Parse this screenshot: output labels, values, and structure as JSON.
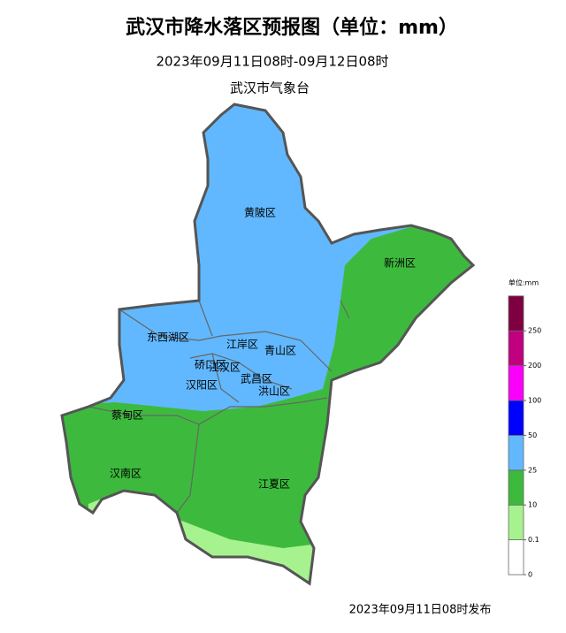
{
  "header": {
    "title": "武汉市降水落区预报图（单位：mm）",
    "subtitle": "2023年09月11日08时-09月12日08时",
    "issuer": "武汉市气象台"
  },
  "districts": [
    "黄陂区",
    "新洲区",
    "东西湖区",
    "江岸区",
    "青山区",
    "硚口区",
    "江汉区",
    "汉阳区",
    "武昌区",
    "洪山区",
    "蔡甸区",
    "汉南区",
    "江夏区"
  ],
  "legend": {
    "unit": "单位:mm",
    "levels": [
      0,
      0.1,
      10,
      25,
      50,
      100,
      200,
      250
    ],
    "colors": [
      "#ffffff",
      "#a6f28f",
      "#3dba3d",
      "#61b8ff",
      "#0000fe",
      "#fa00fa",
      "#c0007f",
      "#7e0040"
    ]
  },
  "footer": "2023年09月11日08时发布"
}
